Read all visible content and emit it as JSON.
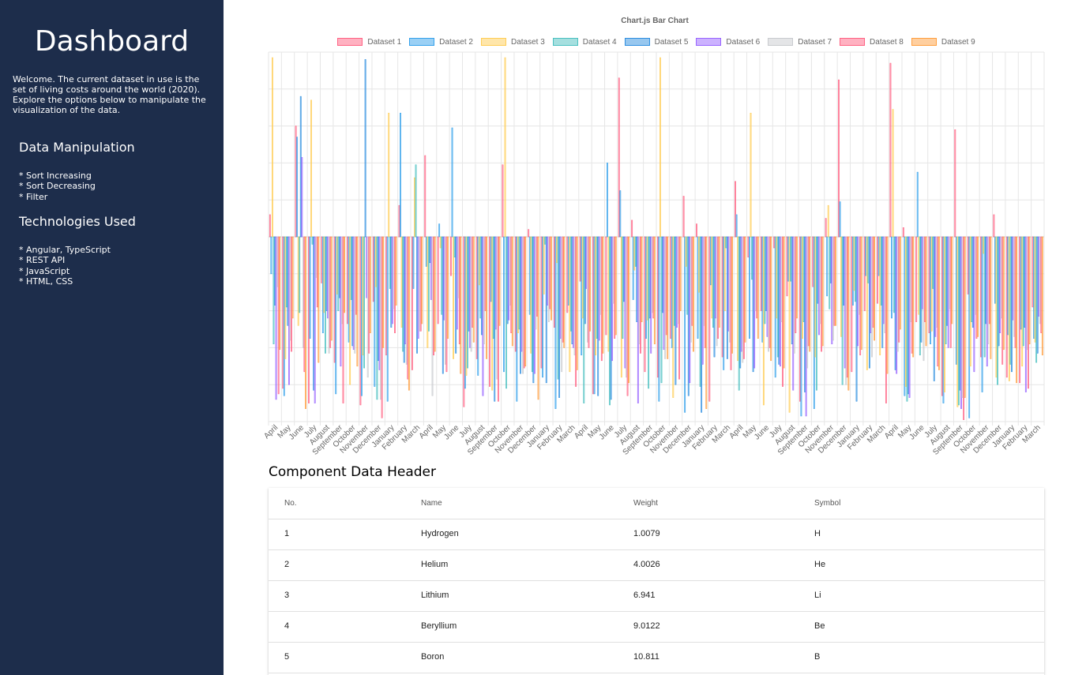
{
  "sidebar": {
    "title": "Dashboard",
    "intro": "Welcome. The current dataset in use is the set of living costs around the world (2020). Explore the options below to manipulate the visualization of the data.",
    "manipulation_heading": "Data Manipulation",
    "manipulation_items": [
      "* Sort Increasing",
      "* Sort Decreasing",
      "* Filter"
    ],
    "tech_heading": "Technologies Used",
    "tech_items": [
      "* Angular, TypeScript",
      "* REST API",
      "* JavaScript",
      "* HTML, CSS"
    ]
  },
  "chart_data": {
    "type": "bar",
    "title": "Chart.js Bar Chart",
    "legend_position": "top",
    "grid": true,
    "categories": [
      "April",
      "May",
      "June",
      "July",
      "August",
      "September",
      "October",
      "November",
      "December",
      "January",
      "February",
      "March",
      "April",
      "May",
      "June",
      "July",
      "August",
      "September",
      "October",
      "November",
      "December",
      "January",
      "February",
      "March",
      "April",
      "May",
      "June",
      "July",
      "August",
      "September",
      "October",
      "November",
      "December",
      "January",
      "February",
      "March",
      "April",
      "May",
      "June",
      "July",
      "August",
      "September",
      "October",
      "November",
      "December",
      "January",
      "February",
      "March",
      "April",
      "May",
      "June",
      "July",
      "August",
      "September",
      "October",
      "November",
      "December",
      "January",
      "February",
      "March"
    ],
    "series": [
      {
        "name": "Dataset 1",
        "color": "#ff6384",
        "values": [
          12,
          -82,
          60,
          -90,
          -25,
          -68,
          -47,
          -91,
          -35,
          -64,
          17,
          -72,
          44,
          -47,
          -21,
          -92,
          -66,
          -81,
          39,
          -62,
          4,
          -71,
          -49,
          -41,
          -24,
          -85,
          -53,
          86,
          9,
          -73,
          -76,
          -55,
          22,
          7,
          -89,
          -65,
          30,
          -11,
          -40,
          -6,
          -32,
          -89,
          -27,
          10,
          85,
          -73,
          -40,
          -36,
          94,
          5,
          -46,
          -52,
          -86,
          58,
          -31,
          -65,
          12,
          -76,
          -79,
          -38
        ]
      },
      {
        "name": "Dataset 2",
        "color": "#36a2eb",
        "values": [
          -20,
          -86,
          54,
          -55,
          -52,
          -85,
          -57,
          -86,
          -81,
          -89,
          67,
          -28,
          -16,
          7,
          59,
          -82,
          -75,
          -35,
          -73,
          -89,
          -42,
          -76,
          -93,
          -37,
          -64,
          -85,
          40,
          25,
          -34,
          -55,
          -89,
          -60,
          -95,
          -55,
          -26,
          -72,
          12,
          -55,
          -57,
          -76,
          -24,
          -97,
          -93,
          -32,
          19,
          -37,
          -21,
          -21,
          -44,
          -86,
          35,
          -58,
          -90,
          -69,
          -98,
          -84,
          -36,
          -53,
          -50,
          -55
        ]
      },
      {
        "name": "Dataset 3",
        "color": "#ffcd56",
        "values": [
          97,
          -66,
          -48,
          74,
          -41,
          -31,
          -80,
          -64,
          -27,
          67,
          -49,
          32,
          -60,
          -6,
          -66,
          -75,
          -26,
          -83,
          97,
          -52,
          -63,
          -31,
          -14,
          -73,
          -44,
          -64,
          -62,
          -76,
          -18,
          -45,
          97,
          -87,
          -16,
          -30,
          -44,
          -40,
          -67,
          67,
          -91,
          -44,
          -95,
          -55,
          -65,
          17,
          -54,
          -29,
          -72,
          -64,
          69,
          -81,
          -42,
          -51,
          -84,
          -92,
          -70,
          -9,
          -76,
          -78,
          -70,
          -57
        ]
      },
      {
        "name": "Dataset 4",
        "color": "#4bc0c0",
        "values": [
          -58,
          -38,
          -41,
          -4,
          -63,
          -40,
          -34,
          -71,
          -88,
          -28,
          -62,
          39,
          -51,
          -42,
          -11,
          -71,
          -44,
          -55,
          -82,
          -50,
          -73,
          -4,
          -77,
          -51,
          -90,
          -55,
          -91,
          -55,
          -16,
          -82,
          -79,
          -48,
          -42,
          -81,
          -49,
          -6,
          -83,
          -23,
          -47,
          -65,
          -24,
          -46,
          -83,
          -39,
          -80,
          -35,
          -25,
          -37,
          -41,
          -89,
          -64,
          -28,
          -58,
          -91,
          -46,
          -65,
          -80,
          -69,
          -59,
          -68
        ]
      },
      {
        "name": "Dataset 5",
        "color": "#2f8fe0",
        "values": [
          -37,
          -48,
          76,
          -83,
          -40,
          -33,
          -59,
          96,
          -67,
          -49,
          -68,
          -63,
          -14,
          -74,
          -63,
          -51,
          -53,
          -89,
          -47,
          -74,
          -79,
          -79,
          -87,
          -58,
          -47,
          -86,
          -88,
          -35,
          -46,
          -44,
          -41,
          -80,
          -86,
          -95,
          -65,
          -66,
          -71,
          -73,
          -40,
          -69,
          -58,
          -84,
          -36,
          -25,
          -37,
          -89,
          -71,
          -60,
          -72,
          -85,
          -57,
          -78,
          -48,
          -83,
          -49,
          -47,
          -59,
          -73,
          -49,
          -63
        ]
      },
      {
        "name": "Dataset 6",
        "color": "#9966ff",
        "values": [
          -88,
          -80,
          43,
          -90,
          -44,
          -70,
          -61,
          -33,
          -72,
          -47,
          -58,
          -55,
          -34,
          -45,
          -50,
          -60,
          -86,
          -50,
          -45,
          -62,
          -74,
          -37,
          -55,
          -60,
          -28,
          -56,
          -67,
          -71,
          -90,
          -63,
          -61,
          -49,
          -79,
          -69,
          -44,
          -51,
          -62,
          -71,
          -54,
          -70,
          -83,
          -97,
          -53,
          -58,
          -71,
          -59,
          -52,
          -47,
          -74,
          -87,
          -39,
          -54,
          -60,
          -93,
          -73,
          -70,
          -52,
          -45,
          -84,
          -43
        ]
      },
      {
        "name": "Dataset 7",
        "color": "#c9cbcf",
        "values": [
          -27,
          -56,
          -60,
          -22,
          -63,
          -47,
          -63,
          -76,
          -88,
          -39,
          -69,
          -51,
          -86,
          -69,
          -33,
          -62,
          -58,
          -77,
          -37,
          -74,
          -50,
          -46,
          -73,
          -64,
          -57,
          -42,
          -36,
          -76,
          -58,
          -41,
          -66,
          -47,
          -57,
          -48,
          -59,
          -57,
          -68,
          -40,
          -62,
          -46,
          -63,
          -71,
          -47,
          -56,
          -80,
          -42,
          -65,
          -52,
          -62,
          -46,
          -67,
          -49,
          -39,
          -87,
          -42,
          -58,
          -44,
          -54,
          -61,
          -47
        ]
      },
      {
        "name": "Dataset 8",
        "color": "#ff6384",
        "values": [
          -85,
          -62,
          -73,
          -38,
          -60,
          -90,
          -42,
          -63,
          -98,
          -52,
          -77,
          -51,
          -64,
          -73,
          -58,
          -49,
          -40,
          -89,
          -52,
          -71,
          -43,
          -39,
          -57,
          -81,
          -60,
          -67,
          -55,
          -86,
          -63,
          -44,
          -53,
          -77,
          -48,
          -60,
          -55,
          -72,
          -66,
          -44,
          -60,
          -81,
          -52,
          -59,
          -62,
          -48,
          -76,
          -64,
          -49,
          -90,
          -57,
          -63,
          -46,
          -70,
          -60,
          -99,
          -55,
          -47,
          -69,
          -60,
          -82,
          -52
        ]
      },
      {
        "name": "Dataset 9",
        "color": "#ff9f40",
        "values": [
          -61,
          -44,
          -93,
          -68,
          -56,
          -41,
          -70,
          -52,
          -60,
          -37,
          -83,
          -47,
          -62,
          -55,
          -74,
          -57,
          -66,
          -48,
          -59,
          -70,
          -88,
          -45,
          -60,
          -72,
          -51,
          -63,
          -53,
          -79,
          -46,
          -58,
          -66,
          -40,
          -62,
          -93,
          -49,
          -63,
          -57,
          -55,
          -67,
          -71,
          -44,
          -62,
          -59,
          -48,
          -83,
          -61,
          -56,
          -74,
          -50,
          -65,
          -59,
          -72,
          -47,
          -87,
          -54,
          -66,
          -61,
          -79,
          -58,
          -64
        ]
      }
    ],
    "ylim": [
      -100,
      100
    ]
  },
  "table": {
    "title": "Component Data Header",
    "columns": [
      "No.",
      "Name",
      "Weight",
      "Symbol"
    ],
    "rows": [
      [
        "1",
        "Hydrogen",
        "1.0079",
        "H"
      ],
      [
        "2",
        "Helium",
        "4.0026",
        "He"
      ],
      [
        "3",
        "Lithium",
        "6.941",
        "Li"
      ],
      [
        "4",
        "Beryllium",
        "9.0122",
        "Be"
      ],
      [
        "5",
        "Boron",
        "10.811",
        "B"
      ]
    ]
  }
}
